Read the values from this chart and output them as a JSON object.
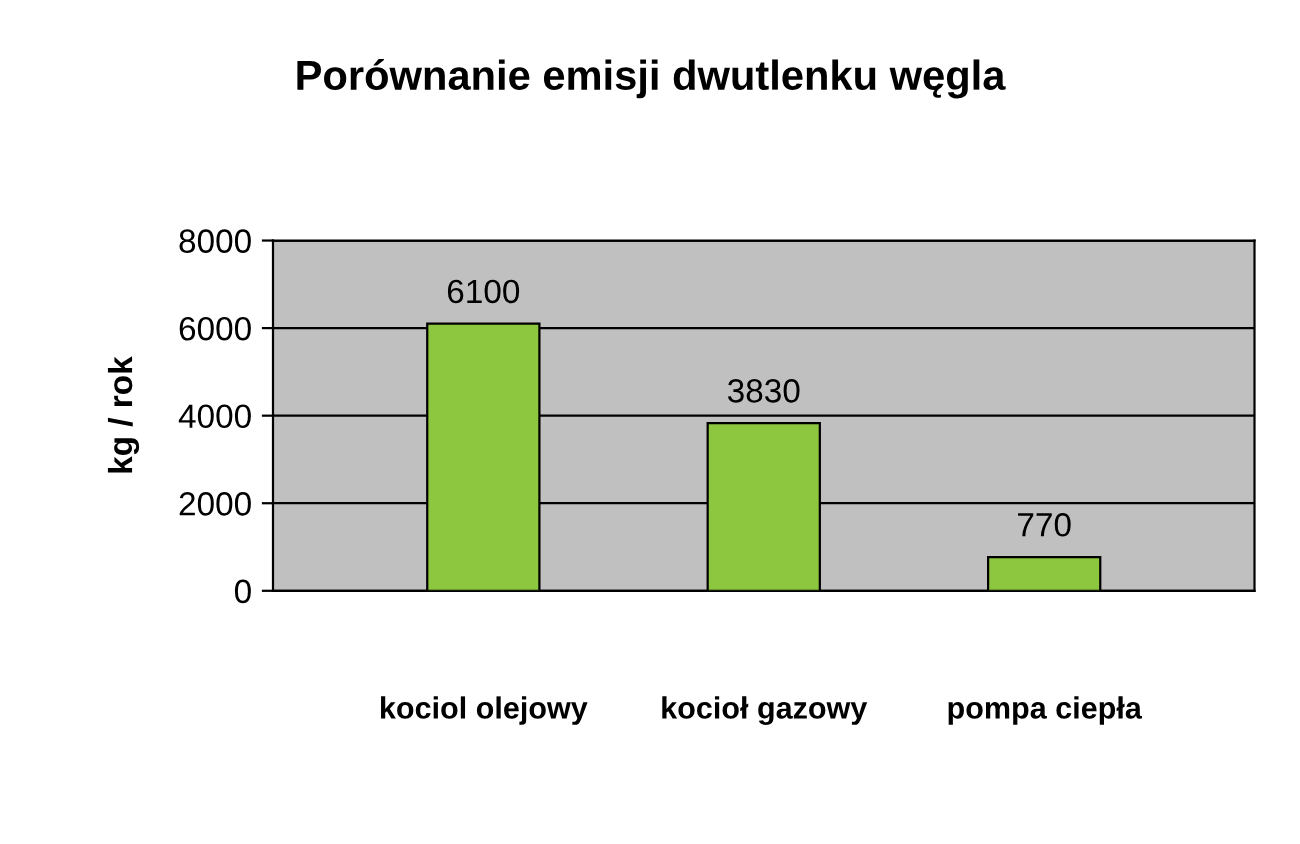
{
  "chart_data": {
    "type": "bar",
    "title": "Porównanie emisji dwutlenku węgla",
    "ylabel": "kg / rok",
    "categories": [
      "kociol olejowy",
      "kocioł gazowy",
      "pompa ciepła"
    ],
    "values": [
      6100,
      3830,
      770
    ],
    "color": "#8dc63f",
    "ylim": [
      0,
      8000
    ],
    "yticks": [
      0,
      2000,
      4000,
      6000,
      8000
    ],
    "grid": "y",
    "data_labels": true,
    "legend": false
  }
}
